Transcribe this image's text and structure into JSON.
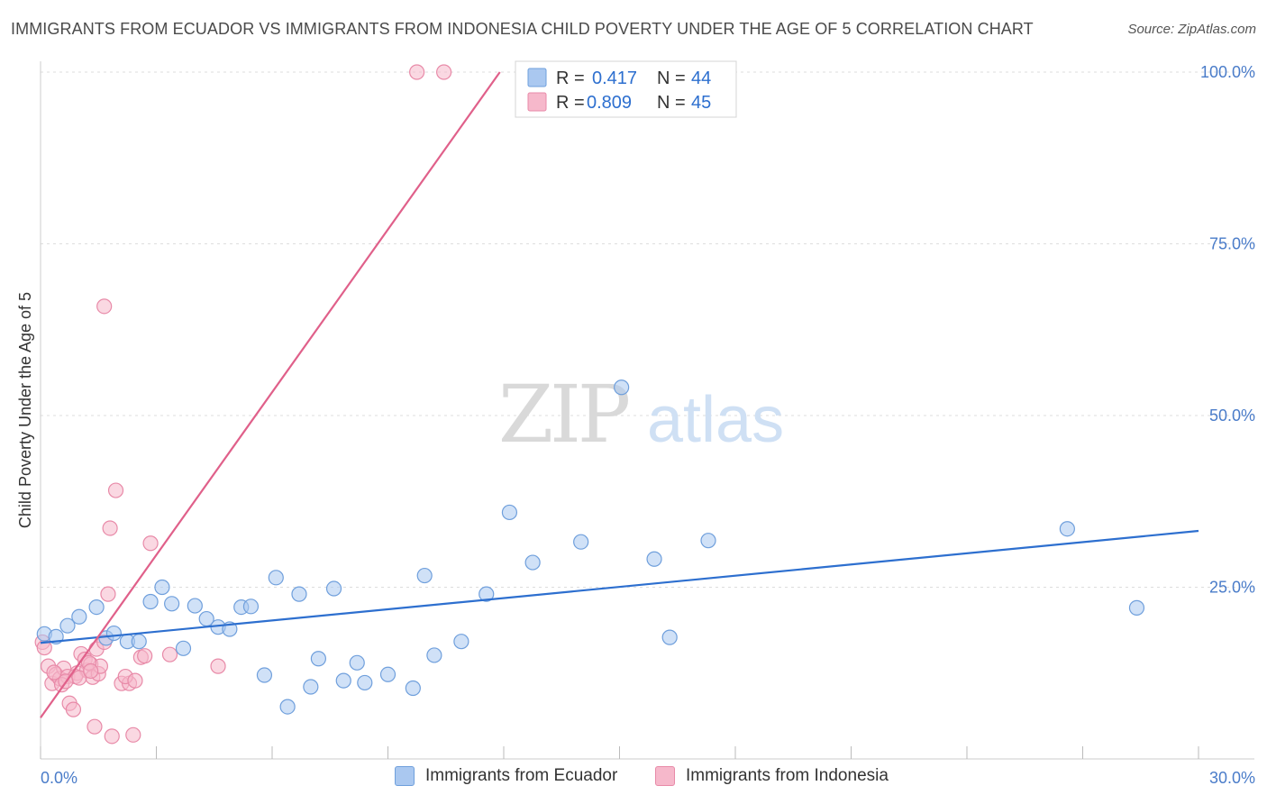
{
  "header": {
    "title": "IMMIGRANTS FROM ECUADOR VS IMMIGRANTS FROM INDONESIA CHILD POVERTY UNDER THE AGE OF 5 CORRELATION CHART",
    "source": "Source: ZipAtlas.com"
  },
  "watermark": {
    "zip": "ZIP",
    "atlas": "atlas"
  },
  "colors": {
    "ecuador_fill": "#aac8f0",
    "ecuador_stroke": "#6f9fdc",
    "ecuador_line": "#2d6fcf",
    "indonesia_fill": "#f6b8cb",
    "indonesia_stroke": "#e88aa8",
    "indonesia_line": "#e0608a",
    "accent_text": "#4a7cc9",
    "grid": "#dddddd"
  },
  "stats": {
    "ecuador": {
      "r_label": "R =",
      "r_value": "0.417",
      "n_label": "N =",
      "n_value": "44"
    },
    "indonesia": {
      "r_label": "R =",
      "r_value": "0.809",
      "n_label": "N =",
      "n_value": "45"
    }
  },
  "chart_data": {
    "type": "scatter",
    "title": "IMMIGRANTS FROM ECUADOR VS IMMIGRANTS FROM INDONESIA CHILD POVERTY UNDER THE AGE OF 5 CORRELATION CHART",
    "xlabel": "",
    "ylabel": "Child Poverty Under the Age of 5",
    "xlim": [
      0,
      30
    ],
    "ylim": [
      0,
      105
    ],
    "x_tick_labels": [
      {
        "x": 0,
        "label": "0.0%"
      },
      {
        "x": 30,
        "label": "30.0%"
      }
    ],
    "y_tick_labels": [
      {
        "y": 25,
        "label": "25.0%"
      },
      {
        "y": 50,
        "label": "50.0%"
      },
      {
        "y": 75,
        "label": "75.0%"
      },
      {
        "y": 100,
        "label": "100.0%"
      }
    ],
    "grid": true,
    "legend_position": "bottom-center",
    "series": [
      {
        "name": "Immigrants from Ecuador",
        "trend": [
          [
            0,
            16.9
          ],
          [
            30,
            33.2
          ]
        ],
        "points": [
          [
            0.1,
            18.2
          ],
          [
            0.4,
            17.8
          ],
          [
            0.7,
            19.4
          ],
          [
            1.0,
            20.7
          ],
          [
            1.45,
            22.1
          ],
          [
            1.7,
            17.6
          ],
          [
            1.9,
            18.3
          ],
          [
            2.25,
            17.1
          ],
          [
            2.55,
            17.1
          ],
          [
            2.85,
            22.9
          ],
          [
            3.15,
            25.0
          ],
          [
            3.4,
            22.6
          ],
          [
            3.7,
            16.1
          ],
          [
            4.0,
            22.3
          ],
          [
            4.3,
            20.4
          ],
          [
            4.6,
            19.2
          ],
          [
            4.9,
            18.9
          ],
          [
            5.2,
            22.1
          ],
          [
            5.45,
            22.2
          ],
          [
            5.8,
            12.2
          ],
          [
            6.1,
            26.4
          ],
          [
            6.4,
            7.6
          ],
          [
            6.7,
            24.0
          ],
          [
            7.0,
            10.5
          ],
          [
            7.2,
            14.6
          ],
          [
            7.6,
            24.8
          ],
          [
            7.85,
            11.4
          ],
          [
            8.2,
            14.0
          ],
          [
            8.4,
            11.1
          ],
          [
            9.0,
            12.3
          ],
          [
            9.65,
            10.3
          ],
          [
            9.95,
            26.7
          ],
          [
            10.2,
            15.1
          ],
          [
            10.9,
            17.1
          ],
          [
            11.55,
            24.0
          ],
          [
            12.15,
            35.9
          ],
          [
            12.75,
            28.6
          ],
          [
            14.0,
            31.6
          ],
          [
            15.05,
            54.1
          ],
          [
            15.9,
            29.1
          ],
          [
            16.3,
            17.7
          ],
          [
            17.3,
            31.8
          ],
          [
            26.6,
            33.5
          ],
          [
            28.4,
            22.0
          ]
        ]
      },
      {
        "name": "Immigrants from Indonesia",
        "trend": [
          [
            0,
            6.0
          ],
          [
            11.9,
            100
          ]
        ],
        "points": [
          [
            0.05,
            17.0
          ],
          [
            0.1,
            16.2
          ],
          [
            0.2,
            13.5
          ],
          [
            0.3,
            11.0
          ],
          [
            0.4,
            12.3
          ],
          [
            0.5,
            11.7
          ],
          [
            0.6,
            13.2
          ],
          [
            0.7,
            12.0
          ],
          [
            0.75,
            8.1
          ],
          [
            0.85,
            7.2
          ],
          [
            0.95,
            12.5
          ],
          [
            1.05,
            15.3
          ],
          [
            1.15,
            14.5
          ],
          [
            1.2,
            12.9
          ],
          [
            1.3,
            13.8
          ],
          [
            1.35,
            11.9
          ],
          [
            1.45,
            16.0
          ],
          [
            1.5,
            12.4
          ],
          [
            1.4,
            4.7
          ],
          [
            1.65,
            17.0
          ],
          [
            1.65,
            65.9
          ],
          [
            1.75,
            24.0
          ],
          [
            1.8,
            33.6
          ],
          [
            1.95,
            39.1
          ],
          [
            1.85,
            3.3
          ],
          [
            2.1,
            11.0
          ],
          [
            2.3,
            11.0
          ],
          [
            2.2,
            12.0
          ],
          [
            2.4,
            3.5
          ],
          [
            2.6,
            14.8
          ],
          [
            2.7,
            15.0
          ],
          [
            2.85,
            31.4
          ],
          [
            3.35,
            15.2
          ],
          [
            4.6,
            13.5
          ],
          [
            0.55,
            10.8
          ],
          [
            0.9,
            12.0
          ],
          [
            1.0,
            11.8
          ],
          [
            1.55,
            13.5
          ],
          [
            0.35,
            12.6
          ],
          [
            1.25,
            14.0
          ],
          [
            0.65,
            11.3
          ],
          [
            2.45,
            11.4
          ],
          [
            9.75,
            100.0
          ],
          [
            10.45,
            100.0
          ],
          [
            1.3,
            12.8
          ]
        ]
      }
    ]
  },
  "legend": {
    "ecuador_label": "Immigrants from Ecuador",
    "indonesia_label": "Immigrants from Indonesia"
  }
}
